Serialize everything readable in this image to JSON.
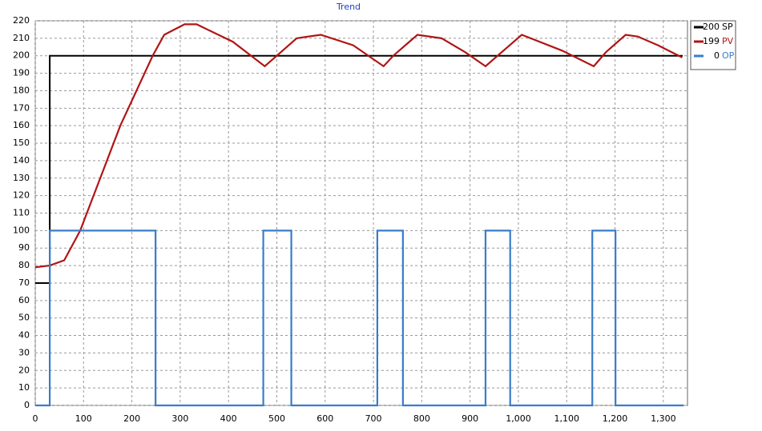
{
  "chart_data": {
    "type": "line",
    "title": "Trend",
    "xlim": [
      0,
      1350
    ],
    "ylim": [
      0,
      220
    ],
    "xticks": [
      0,
      100,
      200,
      300,
      400,
      500,
      600,
      700,
      800,
      900,
      {
        "value": 1000,
        "label": "1,000"
      },
      {
        "value": 1100,
        "label": "1,100"
      },
      {
        "value": 1200,
        "label": "1,200"
      },
      {
        "value": 1300,
        "label": "1,300"
      }
    ],
    "yticks": [
      0,
      10,
      20,
      30,
      40,
      50,
      60,
      70,
      80,
      90,
      100,
      110,
      120,
      130,
      140,
      150,
      160,
      170,
      180,
      190,
      200,
      210,
      220
    ],
    "grid": true,
    "legend": "right",
    "series": [
      {
        "name": "SP",
        "current": 200,
        "color": "#000000",
        "x": [
          0,
          30,
          30,
          1340
        ],
        "values": [
          70,
          70,
          200,
          200
        ]
      },
      {
        "name": "PV",
        "current": 199,
        "color": "#b01515",
        "x": [
          0,
          30,
          60,
          93,
          176,
          243,
          267,
          309,
          334,
          409,
          475,
          500,
          541,
          591,
          658,
          721,
          741,
          791,
          841,
          890,
          932,
          957,
          1007,
          1090,
          1156,
          1181,
          1222,
          1247,
          1289,
          1339
        ],
        "values": [
          79,
          80,
          83,
          100,
          160,
          200,
          212,
          218,
          218,
          208,
          194,
          200,
          210,
          212,
          206,
          194,
          200,
          212,
          210,
          202,
          194,
          200,
          212,
          203,
          194,
          202,
          212,
          211,
          206,
          199
        ]
      },
      {
        "name": "OP",
        "current": 0,
        "color": "#3a7cc8",
        "x": [
          0,
          30,
          30,
          249,
          249,
          472,
          472,
          530,
          530,
          708,
          708,
          761,
          761,
          932,
          932,
          983,
          983,
          1153,
          1153,
          1201,
          1201,
          1342
        ],
        "values": [
          0,
          0,
          100,
          100,
          0,
          0,
          100,
          100,
          0,
          0,
          100,
          100,
          0,
          0,
          100,
          100,
          0,
          0,
          100,
          100,
          0,
          0
        ]
      }
    ]
  }
}
